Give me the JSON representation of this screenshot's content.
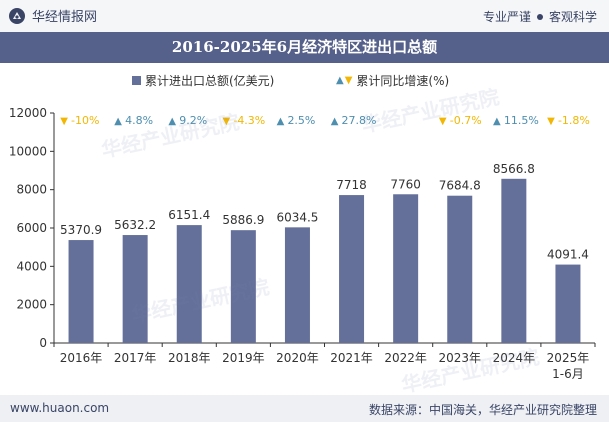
{
  "header": {
    "brand": "华经情报网",
    "tagline_left": "专业严谨",
    "tagline_right": "客观科学"
  },
  "title": "2016-2025年6月经济特区进出口总额",
  "legend": {
    "series1": "累计进出口总额(亿美元)",
    "series2": "累计同比增速(%)"
  },
  "footer": {
    "website": "www.huaon.com",
    "source": "数据来源：中国海关，华经产业研究院整理"
  },
  "watermark": "华经产业研究院",
  "colors": {
    "bar": "#64709a",
    "up": "#4e8fb0",
    "down": "#f2b705",
    "title_bg": "#55618a"
  },
  "chart_data": {
    "type": "bar",
    "categories": [
      "2016年",
      "2017年",
      "2018年",
      "2019年",
      "2020年",
      "2021年",
      "2022年",
      "2023年",
      "2024年",
      "2025年\n1-6月"
    ],
    "series": [
      {
        "name": "累计进出口总额(亿美元)",
        "values": [
          5370.9,
          5632.2,
          6151.4,
          5886.9,
          6034.5,
          7718,
          7760,
          7684.8,
          8566.8,
          4091.4
        ]
      },
      {
        "name": "累计同比增速(%)",
        "values": [
          -10,
          4.8,
          9.2,
          -4.3,
          2.5,
          27.8,
          null,
          -0.7,
          11.5,
          -1.8
        ]
      }
    ],
    "value_labels": [
      "5370.9",
      "5632.2",
      "6151.4",
      "5886.9",
      "6034.5",
      "7718",
      "7760",
      "7684.8",
      "8566.8",
      "4091.4"
    ],
    "growth_labels": [
      "-10%",
      "4.8%",
      "9.2%",
      "-4.3%",
      "2.5%",
      "27.8%",
      "",
      "-0.7%",
      "11.5%",
      "-1.8%"
    ],
    "yticks": [
      "0",
      "2000",
      "4000",
      "6000",
      "8000",
      "10000",
      "12000"
    ],
    "ylim": [
      0,
      12000
    ],
    "grid": false
  }
}
